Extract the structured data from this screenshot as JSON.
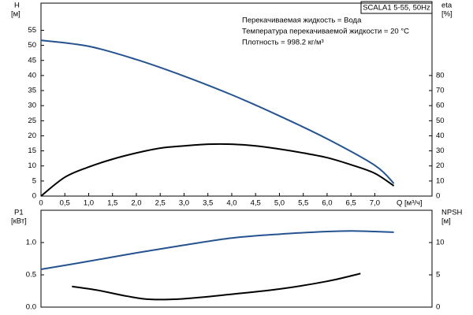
{
  "chart_data": [
    {
      "type": "line",
      "title": "SCALA1 5-55, 50Hz",
      "annotations": [
        "Перекачиваемая жидкость = Вода",
        "Температура перекачиваемой жидкости = 20 °C",
        "Плотность = 998.2 кг/м³"
      ],
      "y_label": "H",
      "y_unit": "[м]",
      "y2_label": "eta",
      "y2_unit": "[%]",
      "x_label": "Q [м³/ч]",
      "xlim": [
        0,
        8.2
      ],
      "ylim": [
        0,
        64
      ],
      "y2lim": [
        0,
        128
      ],
      "xticks": [
        0,
        {
          "value": 0.5,
          "label": "0,5"
        },
        {
          "value": 1,
          "label": "1,0"
        },
        {
          "value": 1.5,
          "label": "1,5"
        },
        {
          "value": 2,
          "label": "2,0"
        },
        {
          "value": 2.5,
          "label": "2,5"
        },
        {
          "value": 3,
          "label": "3,0"
        },
        {
          "value": 3.5,
          "label": "3,5"
        },
        {
          "value": 4,
          "label": "4,0"
        },
        {
          "value": 4.5,
          "label": "4,5"
        },
        {
          "value": 5,
          "label": "5,0"
        },
        {
          "value": 5.5,
          "label": "5,5"
        },
        {
          "value": 6,
          "label": "6,0"
        },
        {
          "value": 6.5,
          "label": "6,5"
        },
        {
          "value": 7,
          "label": "7,0"
        }
      ],
      "yticks": [
        0,
        5,
        10,
        15,
        20,
        25,
        30,
        35,
        40,
        45,
        50,
        55
      ],
      "y2ticks": [
        0,
        10,
        20,
        30,
        40,
        50,
        60,
        70,
        80
      ],
      "series": [
        {
          "color": "#24538f",
          "x": [
            0,
            1,
            2,
            3,
            4,
            5,
            6,
            7,
            7.4
          ],
          "values": [
            51.7,
            49.7,
            45.3,
            39.8,
            33.6,
            26.6,
            19,
            10.2,
            4.2
          ]
        },
        {
          "color": "#000000",
          "axis": "y2",
          "x": [
            0,
            0.5,
            1,
            1.5,
            2,
            2.5,
            3,
            3.5,
            4,
            4.5,
            5,
            5.5,
            6,
            6.5,
            7,
            7.4
          ],
          "values": [
            0,
            12.5,
            19.3,
            24.5,
            28.6,
            31.8,
            33.3,
            34.4,
            34.4,
            33.3,
            31.2,
            28.6,
            25.5,
            20.8,
            15.1,
            6.8
          ]
        }
      ]
    },
    {
      "type": "line",
      "y_label": "P1",
      "y_unit": "[кВт]",
      "y2_label": "NPSH",
      "y2_unit": "[м]",
      "xlim": [
        0,
        8.2
      ],
      "ylim": [
        0,
        1.5
      ],
      "y2lim": [
        0,
        15
      ],
      "yticks": [
        {
          "value": 0,
          "label": "0.0"
        },
        {
          "value": 0.5,
          "label": "0.5"
        },
        {
          "value": 1,
          "label": "1.0"
        }
      ],
      "y2ticks": [
        0,
        5,
        10
      ],
      "series": [
        {
          "color": "#24538f",
          "x": [
            0,
            1,
            2,
            3,
            4,
            5,
            6,
            6.5,
            7,
            7.4
          ],
          "values": [
            0.585,
            0.71,
            0.84,
            0.96,
            1.07,
            1.13,
            1.17,
            1.18,
            1.17,
            1.16
          ]
        },
        {
          "color": "#000000",
          "axis": "y2",
          "x": [
            0.65,
            1.2,
            1.8,
            2.3,
            3,
            4,
            5,
            6,
            6.7
          ],
          "values": [
            3.2,
            2.6,
            1.7,
            1.2,
            1.3,
            2.0,
            2.8,
            4.0,
            5.2
          ]
        }
      ]
    }
  ]
}
